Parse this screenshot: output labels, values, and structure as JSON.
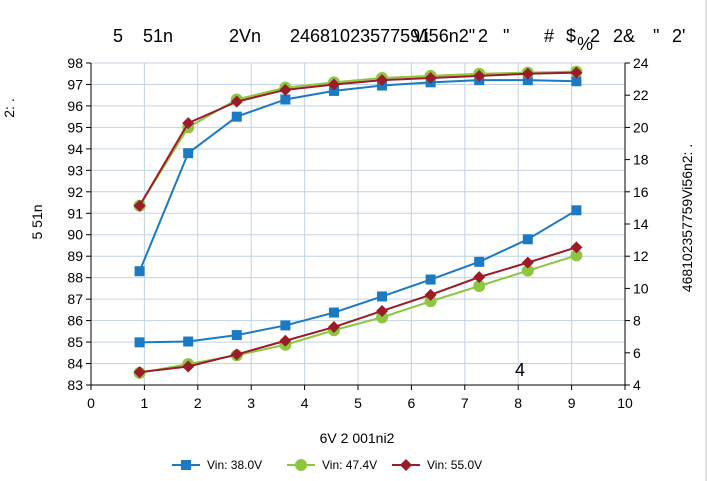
{
  "chart_data": {
    "type": "line",
    "title_parts": [
      "5",
      "51n",
      "2Vn",
      "24681023577591",
      "Vi56n2\"",
      "2",
      "\"",
      "#",
      "$",
      "%",
      "2",
      "2&",
      "\"",
      "2'"
    ],
    "xlabel": "6V   2        001ni2",
    "ylabel": "5    51n",
    "ylabel_extra": "2:   .",
    "y2label": "468102357759Vi56n2:  .",
    "annotation": "4",
    "x_ticks": [
      "0",
      "1",
      "2",
      "3",
      "4",
      "5",
      "6",
      "7",
      "8",
      "9",
      "10"
    ],
    "y_ticks": [
      "83",
      "84",
      "85",
      "86",
      "87",
      "88",
      "89",
      "90",
      "91",
      "92",
      "93",
      "94",
      "95",
      "96",
      "97",
      "98"
    ],
    "y2_ticks": [
      "4",
      "6",
      "8",
      "10",
      "12",
      "14",
      "16",
      "18",
      "20",
      "22",
      "24"
    ],
    "xlim": [
      0,
      10
    ],
    "ylim": [
      83,
      98
    ],
    "y2lim": [
      4,
      24
    ],
    "grid": true,
    "legend_position": "bottom",
    "series": [
      {
        "name": "Vin: 38.0V",
        "axis": "left",
        "color": "#1a7ac4",
        "marker": "square",
        "x": [
          0.91,
          1.82,
          2.73,
          3.64,
          4.55,
          5.45,
          6.36,
          7.27,
          8.18,
          9.09
        ],
        "values": [
          88.3,
          93.8,
          95.5,
          96.3,
          96.7,
          96.95,
          97.1,
          97.2,
          97.2,
          97.15
        ]
      },
      {
        "name": "Vin: 47.4V",
        "axis": "left",
        "color": "#8dc63f",
        "marker": "circle",
        "x": [
          0.91,
          1.82,
          2.73,
          3.64,
          4.55,
          5.45,
          6.36,
          7.27,
          8.18,
          9.09
        ],
        "values": [
          91.35,
          95.0,
          96.3,
          96.85,
          97.1,
          97.3,
          97.4,
          97.5,
          97.55,
          97.6
        ]
      },
      {
        "name": "Vin: 55.0V",
        "axis": "left",
        "color": "#9b1b2a",
        "marker": "diamond",
        "x": [
          0.91,
          1.82,
          2.73,
          3.64,
          4.55,
          5.45,
          6.36,
          7.27,
          8.18,
          9.09
        ],
        "values": [
          91.35,
          95.2,
          96.2,
          96.75,
          97.0,
          97.2,
          97.3,
          97.4,
          97.5,
          97.55
        ]
      },
      {
        "name": "Vin: 38.0V",
        "axis": "right",
        "color": "#1a7ac4",
        "marker": "square",
        "x": [
          0.91,
          1.82,
          2.73,
          3.64,
          4.55,
          5.45,
          6.36,
          7.27,
          8.18,
          9.09
        ],
        "values": [
          6.65,
          6.7,
          7.1,
          7.7,
          8.5,
          9.5,
          10.55,
          11.65,
          13.05,
          14.85
        ]
      },
      {
        "name": "Vin: 47.4V",
        "axis": "right",
        "color": "#8dc63f",
        "marker": "circle",
        "x": [
          0.91,
          1.82,
          2.73,
          3.64,
          4.55,
          5.45,
          6.36,
          7.27,
          8.18,
          9.09
        ],
        "values": [
          4.75,
          5.3,
          5.85,
          6.5,
          7.4,
          8.2,
          9.2,
          10.15,
          11.1,
          12.05
        ]
      },
      {
        "name": "Vin: 55.0V",
        "axis": "right",
        "color": "#9b1b2a",
        "marker": "diamond",
        "x": [
          0.91,
          1.82,
          2.73,
          3.64,
          4.55,
          5.45,
          6.36,
          7.27,
          8.18,
          9.09
        ],
        "values": [
          4.8,
          5.15,
          5.9,
          6.75,
          7.6,
          8.6,
          9.6,
          10.7,
          11.6,
          12.55
        ]
      }
    ]
  }
}
